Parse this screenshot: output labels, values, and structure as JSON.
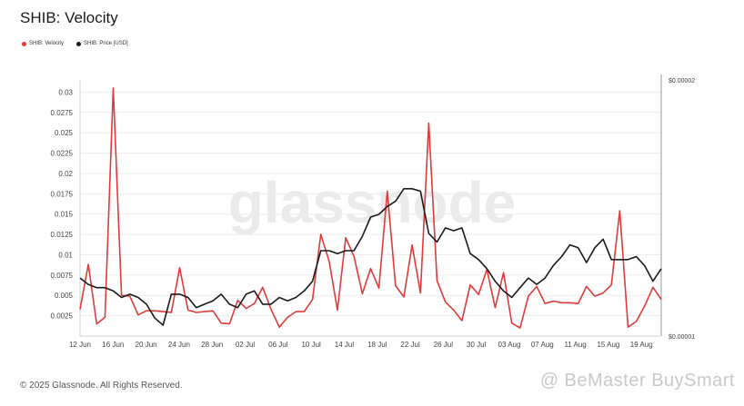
{
  "header": {
    "title": "SHIB: Velocity"
  },
  "legend": {
    "velocity_label": "SHIB: Velocity",
    "price_label": "SHIB: Price [USD]"
  },
  "footer": {
    "copyright": "© 2025 Glassnode. All Rights Reserved."
  },
  "watermark": {
    "text": "glassnode",
    "credit": "@ BeMaster BuySmart"
  },
  "colors": {
    "velocity": "#e03a3a",
    "price": "#1a1a1a",
    "grid": "#ececec",
    "axis_text": "#444444"
  },
  "chart_data": {
    "type": "line",
    "title": "SHIB: Velocity",
    "xlabel": "",
    "ylabel": "",
    "x_tick_labels": [
      "12 Jun",
      "16 Jun",
      "20 Jun",
      "24 Jun",
      "28 Jun",
      "02 Jul",
      "06 Jul",
      "10 Jul",
      "14 Jul",
      "18 Jul",
      "22 Jul",
      "26 Jul",
      "30 Jul",
      "03 Aug",
      "07 Aug",
      "11 Aug",
      "15 Aug",
      "19 Aug"
    ],
    "y_left_ticks": [
      "0.0025",
      "0.005",
      "0.0075",
      "0.01",
      "0.0125",
      "0.015",
      "0.0175",
      "0.02",
      "0.0225",
      "0.025",
      "0.0275",
      "0.03"
    ],
    "y_right_ticks": [
      "$0.00001",
      "$0.00002"
    ],
    "ylim_left": [
      0,
      0.0315
    ],
    "y_right_scale": "log",
    "ylim_right": [
      1e-05,
      2e-05
    ],
    "grid": true,
    "legend_position": "top-left",
    "series": [
      {
        "name": "SHIB: Velocity",
        "axis": "left",
        "values": [
          0.0033,
          0.0088,
          0.0015,
          0.0023,
          0.0305,
          0.005,
          0.0049,
          0.0026,
          0.0031,
          0.0031,
          0.003,
          0.0029,
          0.0084,
          0.0032,
          0.0029,
          0.003,
          0.0031,
          0.0016,
          0.0015,
          0.0044,
          0.0034,
          0.004,
          0.006,
          0.0033,
          0.0011,
          0.0023,
          0.003,
          0.003,
          0.0045,
          0.0125,
          0.0092,
          0.0032,
          0.0121,
          0.0098,
          0.0052,
          0.0083,
          0.0059,
          0.0178,
          0.0062,
          0.0048,
          0.0112,
          0.0053,
          0.0262,
          0.0068,
          0.0042,
          0.0032,
          0.0019,
          0.0063,
          0.0051,
          0.0082,
          0.0035,
          0.0078,
          0.0016,
          0.001,
          0.0049,
          0.0061,
          0.004,
          0.0043,
          0.0041,
          0.0041,
          0.004,
          0.0061,
          0.0049,
          0.0053,
          0.0063,
          0.0154,
          0.0011,
          0.0018,
          0.0037,
          0.006,
          0.0045
        ]
      },
      {
        "name": "SHIB: Price [USD]",
        "axis": "right",
        "values": [
          1.17e-05,
          1.15e-05,
          1.14e-05,
          1.14e-05,
          1.13e-05,
          1.11e-05,
          1.12e-05,
          1.11e-05,
          1.09e-05,
          1.05e-05,
          1.03e-05,
          1.12e-05,
          1.12e-05,
          1.11e-05,
          1.08e-05,
          1.09e-05,
          1.1e-05,
          1.12e-05,
          1.09e-05,
          1.08e-05,
          1.12e-05,
          1.13e-05,
          1.09e-05,
          1.09e-05,
          1.11e-05,
          1.1e-05,
          1.11e-05,
          1.13e-05,
          1.16e-05,
          1.26e-05,
          1.26e-05,
          1.25e-05,
          1.26e-05,
          1.26e-05,
          1.31e-05,
          1.38e-05,
          1.39e-05,
          1.42e-05,
          1.44e-05,
          1.49e-05,
          1.49e-05,
          1.48e-05,
          1.32e-05,
          1.29e-05,
          1.34e-05,
          1.33e-05,
          1.34e-05,
          1.25e-05,
          1.23e-05,
          1.2e-05,
          1.16e-05,
          1.13e-05,
          1.11e-05,
          1.14e-05,
          1.17e-05,
          1.15e-05,
          1.17e-05,
          1.21e-05,
          1.24e-05,
          1.28e-05,
          1.27e-05,
          1.22e-05,
          1.27e-05,
          1.3e-05,
          1.23e-05,
          1.23e-05,
          1.23e-05,
          1.24e-05,
          1.21e-05,
          1.16e-05,
          1.2e-05
        ]
      }
    ]
  }
}
